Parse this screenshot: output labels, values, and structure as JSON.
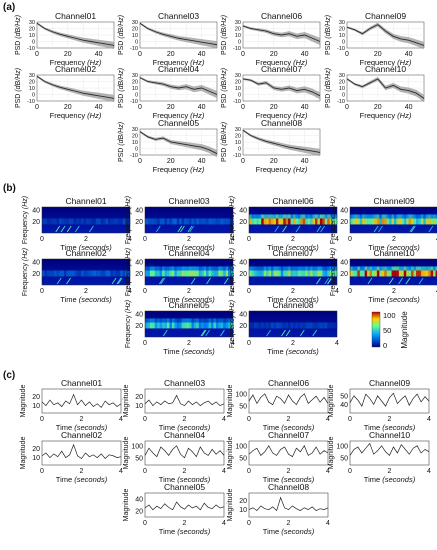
{
  "panel_labels": [
    "(a)",
    "(b)",
    "(c)"
  ],
  "psd": {
    "ylabel": "PSD",
    "ylabel_unit": "(dB/Hz)",
    "xlabel": "Frequency",
    "xlabel_unit": "(Hz)"
  },
  "spec": {
    "ylabel": "Frequency",
    "ylabel_unit": "(Hz)",
    "xlabel": "Time",
    "xlabel_unit": "(seconds)",
    "colorbar_label": "Magnitude"
  },
  "mag": {
    "ylabel": "Magnitude",
    "xlabel": "Time",
    "xlabel_unit": "(seconds)"
  },
  "colors": {
    "psd_band": "#9a9a9a",
    "psd_line": "#2b2b2b",
    "spec_low": "#00008f",
    "spec_high": "#b30000"
  },
  "chart_data": [
    {
      "type": "line",
      "panel": "(a)",
      "xlabel": "Frequency (Hz)",
      "ylabel": "PSD (dB/Hz)",
      "xlim": [
        0,
        50
      ],
      "ylim": [
        -10,
        30
      ],
      "xticks": [
        "0",
        "20",
        "40"
      ],
      "yticks": [
        "30",
        "20",
        "10",
        "0",
        "-10"
      ],
      "grid": true,
      "channels": [
        "Channel01",
        "Channel02",
        "Channel03",
        "Channel04",
        "Channel05",
        "Channel06",
        "Channel07",
        "Channel08",
        "Channel09",
        "Channel10"
      ],
      "x": [
        0,
        5,
        10,
        15,
        20,
        25,
        30,
        35,
        40,
        45,
        50
      ],
      "series": [
        {
          "name": "Channel01",
          "values": [
            28,
            20,
            15,
            11,
            8,
            5,
            2,
            0,
            -2,
            -4,
            -6
          ]
        },
        {
          "name": "Channel02",
          "values": [
            28,
            20,
            15,
            11,
            8,
            5,
            2,
            0,
            -2,
            -4,
            -6
          ]
        },
        {
          "name": "Channel03",
          "values": [
            28,
            20,
            15,
            11,
            8,
            5,
            3,
            1,
            -1,
            -3,
            -5
          ]
        },
        {
          "name": "Channel04",
          "values": [
            26,
            20,
            18,
            16,
            12,
            10,
            12,
            8,
            10,
            5,
            0
          ]
        },
        {
          "name": "Channel05",
          "values": [
            26,
            18,
            14,
            16,
            10,
            8,
            6,
            4,
            2,
            -2,
            -8
          ]
        },
        {
          "name": "Channel06",
          "values": [
            24,
            20,
            18,
            16,
            12,
            10,
            12,
            8,
            10,
            5,
            0
          ]
        },
        {
          "name": "Channel07",
          "values": [
            24,
            22,
            16,
            18,
            10,
            8,
            10,
            6,
            8,
            4,
            -2
          ]
        },
        {
          "name": "Channel08",
          "values": [
            28,
            20,
            15,
            11,
            8,
            5,
            2,
            0,
            -2,
            -4,
            -6
          ]
        },
        {
          "name": "Channel09",
          "values": [
            22,
            18,
            12,
            20,
            26,
            16,
            8,
            4,
            2,
            -2,
            -6
          ]
        },
        {
          "name": "Channel10",
          "values": [
            24,
            16,
            12,
            18,
            24,
            10,
            14,
            8,
            6,
            2,
            -6
          ]
        }
      ]
    },
    {
      "type": "heatmap",
      "panel": "(b)",
      "xlabel": "Time (seconds)",
      "ylabel": "Frequency (Hz)",
      "xlim": [
        0,
        4
      ],
      "ylim": [
        0,
        45
      ],
      "xticks": [
        "0",
        "2",
        "4"
      ],
      "yticks": [
        "40",
        "20"
      ],
      "colorbar": {
        "label": "Magnitude",
        "ticks": [
          "100",
          "50",
          "0"
        ],
        "range": [
          0,
          100
        ]
      },
      "channels": [
        "Channel01",
        "Channel02",
        "Channel03",
        "Channel04",
        "Channel05",
        "Channel06",
        "Channel07",
        "Channel08",
        "Channel09",
        "Channel10"
      ],
      "band_intensity": [
        {
          "name": "Channel01",
          "level": 0.15
        },
        {
          "name": "Channel02",
          "level": 0.2
        },
        {
          "name": "Channel03",
          "level": 0.2
        },
        {
          "name": "Channel04",
          "level": 0.6
        },
        {
          "name": "Channel05",
          "level": 0.5
        },
        {
          "name": "Channel06",
          "level": 0.9
        },
        {
          "name": "Channel07",
          "level": 0.6
        },
        {
          "name": "Channel08",
          "level": 0.15
        },
        {
          "name": "Channel09",
          "level": 0.75
        },
        {
          "name": "Channel10",
          "level": 0.95
        }
      ]
    },
    {
      "type": "line",
      "panel": "(c)",
      "xlabel": "Time (seconds)",
      "ylabel": "Magnitude",
      "xlim": [
        0,
        4
      ],
      "xticks": [
        "0",
        "2",
        "4"
      ],
      "channels": [
        {
          "name": "Channel01",
          "yticks": [
            "20",
            "10"
          ],
          "ylim": [
            2,
            28
          ],
          "values": [
            14,
            10,
            16,
            11,
            13,
            9,
            15,
            12,
            22,
            11,
            16,
            10,
            14,
            9,
            12,
            8,
            15,
            11,
            13,
            9,
            12
          ]
        },
        {
          "name": "Channel02",
          "yticks": [
            "20",
            "10"
          ],
          "ylim": [
            2,
            28
          ],
          "values": [
            12,
            15,
            10,
            14,
            11,
            17,
            10,
            13,
            24,
            12,
            9,
            15,
            11,
            13,
            10,
            14,
            9,
            13,
            12,
            10,
            11
          ]
        },
        {
          "name": "Channel03",
          "yticks": [
            "20",
            "10"
          ],
          "ylim": [
            2,
            28
          ],
          "values": [
            12,
            16,
            10,
            14,
            11,
            15,
            12,
            13,
            21,
            12,
            10,
            15,
            11,
            14,
            10,
            13,
            15,
            11,
            14,
            10,
            12
          ]
        },
        {
          "name": "Channel04",
          "yticks": [
            "100",
            "50"
          ],
          "ylim": [
            20,
            120
          ],
          "values": [
            60,
            90,
            70,
            55,
            95,
            80,
            60,
            85,
            100,
            65,
            50,
            90,
            75,
            55,
            95,
            70,
            60,
            85,
            65,
            80,
            60
          ]
        },
        {
          "name": "Channel05",
          "yticks": [
            "40",
            "20"
          ],
          "ylim": [
            10,
            50
          ],
          "values": [
            25,
            30,
            22,
            28,
            24,
            32,
            26,
            22,
            35,
            27,
            23,
            30,
            25,
            28,
            22,
            33,
            26,
            24,
            30,
            25,
            27
          ]
        },
        {
          "name": "Channel06",
          "yticks": [
            "100",
            "50"
          ],
          "ylim": [
            20,
            120
          ],
          "values": [
            70,
            95,
            60,
            85,
            100,
            65,
            55,
            90,
            80,
            60,
            95,
            70,
            55,
            85,
            100,
            60,
            75,
            90,
            65,
            85,
            60
          ]
        },
        {
          "name": "Channel07",
          "yticks": [
            "100",
            "50"
          ],
          "ylim": [
            20,
            120
          ],
          "values": [
            65,
            80,
            90,
            60,
            75,
            100,
            70,
            60,
            85,
            95,
            65,
            55,
            90,
            75,
            100,
            60,
            70,
            95,
            65,
            80,
            70
          ]
        },
        {
          "name": "Channel08",
          "yticks": [
            "20",
            "10"
          ],
          "ylim": [
            2,
            28
          ],
          "values": [
            10,
            12,
            9,
            14,
            11,
            10,
            13,
            9,
            23,
            12,
            10,
            14,
            11,
            9,
            12,
            10,
            13,
            9,
            11,
            10,
            12
          ]
        },
        {
          "name": "Channel09",
          "yticks": [
            "50",
            "40"
          ],
          "ylim": [
            30,
            58
          ],
          "values": [
            42,
            50,
            45,
            38,
            52,
            47,
            40,
            50,
            44,
            38,
            48,
            53,
            41,
            46,
            50,
            39,
            47,
            52,
            43,
            49,
            44
          ]
        },
        {
          "name": "Channel10",
          "yticks": [
            "100",
            "50"
          ],
          "ylim": [
            20,
            120
          ],
          "values": [
            60,
            85,
            95,
            70,
            90,
            110,
            65,
            80,
            100,
            75,
            60,
            95,
            70,
            105,
            85,
            65,
            90,
            100,
            70,
            85,
            75
          ]
        }
      ]
    }
  ]
}
